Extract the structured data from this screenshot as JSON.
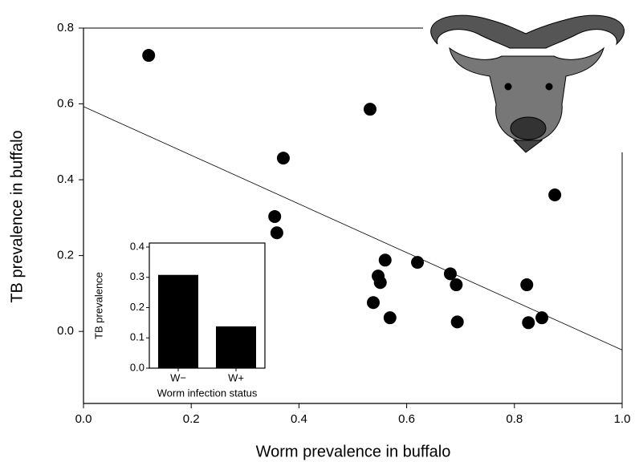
{
  "chart_data": [
    {
      "type": "scatter",
      "xlabel": "Worm prevalence in buffalo",
      "ylabel": "TB prevalence in buffalo",
      "x": [
        0.121,
        0.532,
        0.371,
        0.355,
        0.359,
        0.56,
        0.62,
        0.547,
        0.551,
        0.538,
        0.569,
        0.681,
        0.692,
        0.694,
        0.823,
        0.826,
        0.851,
        0.875
      ],
      "values": [
        0.728,
        0.586,
        0.457,
        0.303,
        0.26,
        0.188,
        0.182,
        0.146,
        0.129,
        0.076,
        0.036,
        0.152,
        0.123,
        0.025,
        0.123,
        0.023,
        0.036,
        0.36
      ],
      "color": "#000000",
      "fit": {
        "x": [
          0,
          1
        ],
        "y": [
          0.593,
          -0.049
        ]
      },
      "xlim": [
        0,
        1
      ],
      "ylim": [
        -0.19,
        0.8
      ],
      "xticks": [
        {
          "value": 0,
          "label": "0.0"
        },
        0.2,
        0.4,
        0.6,
        0.8,
        {
          "value": 1,
          "label": "1.0"
        }
      ],
      "yticks": [
        {
          "value": 0,
          "label": "0.0"
        },
        0.2,
        0.4,
        0.6,
        0.8
      ]
    },
    {
      "type": "bar",
      "xlabel": "Worm infection status",
      "ylabel": "TB prevalence",
      "categories": [
        "W−",
        "W+"
      ],
      "values": [
        0.308,
        0.138
      ],
      "color": "#000000",
      "ylim": [
        0,
        0.4
      ],
      "yticks": [
        {
          "value": 0,
          "label": "0.0"
        },
        0.1,
        0.2,
        0.3,
        0.4
      ]
    }
  ]
}
